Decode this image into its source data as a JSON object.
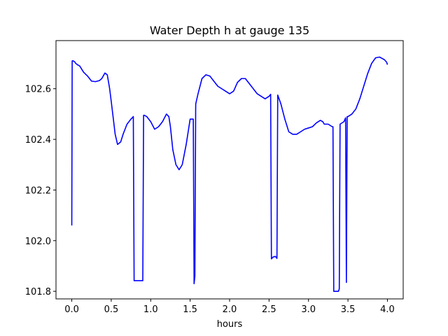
{
  "chart_data": {
    "type": "line",
    "title": "Water Depth h at gauge 135",
    "xlabel": "hours",
    "ylabel": "",
    "xlim": [
      -0.2,
      4.2
    ],
    "ylim": [
      101.77,
      102.79
    ],
    "x_ticks": [
      0.0,
      0.5,
      1.0,
      1.5,
      2.0,
      2.5,
      3.0,
      3.5,
      4.0
    ],
    "x_tick_labels": [
      "0.0",
      "0.5",
      "1.0",
      "1.5",
      "2.0",
      "2.5",
      "3.0",
      "3.5",
      "4.0"
    ],
    "y_ticks": [
      101.8,
      102.0,
      102.2,
      102.4,
      102.6
    ],
    "y_tick_labels": [
      "101.8",
      "102.0",
      "102.2",
      "102.4",
      "102.6"
    ],
    "grid": false,
    "series": [
      {
        "color": "#0000ff",
        "x": [
          0.0,
          0.005,
          0.02,
          0.04,
          0.05,
          0.07,
          0.1,
          0.15,
          0.2,
          0.25,
          0.3,
          0.35,
          0.38,
          0.42,
          0.45,
          0.48,
          0.5,
          0.55,
          0.58,
          0.62,
          0.65,
          0.7,
          0.75,
          0.78,
          0.79,
          0.8,
          0.9,
          0.91,
          0.92,
          0.95,
          1.0,
          1.05,
          1.1,
          1.15,
          1.2,
          1.23,
          1.25,
          1.28,
          1.32,
          1.36,
          1.4,
          1.45,
          1.5,
          1.52,
          1.54,
          1.55,
          1.56,
          1.57,
          1.571,
          1.6,
          1.65,
          1.7,
          1.75,
          1.8,
          1.85,
          1.9,
          1.95,
          2.0,
          2.05,
          2.1,
          2.15,
          2.2,
          2.25,
          2.3,
          2.35,
          2.4,
          2.45,
          2.5,
          2.52,
          2.53,
          2.55,
          2.58,
          2.6,
          2.61,
          2.65,
          2.7,
          2.75,
          2.8,
          2.85,
          2.9,
          2.95,
          3.0,
          3.05,
          3.1,
          3.15,
          3.18,
          3.2,
          3.25,
          3.3,
          3.31,
          3.32,
          3.38,
          3.39,
          3.4,
          3.45,
          3.47,
          3.48,
          3.49,
          3.5,
          3.55,
          3.6,
          3.65,
          3.7,
          3.75,
          3.8,
          3.85,
          3.9,
          3.93,
          3.96,
          3.99,
          4.0
        ],
        "values": [
          102.06,
          102.71,
          102.71,
          102.705,
          102.7,
          102.695,
          102.69,
          102.665,
          102.65,
          102.63,
          102.628,
          102.632,
          102.64,
          102.662,
          102.655,
          102.6,
          102.55,
          102.42,
          102.38,
          102.39,
          102.42,
          102.46,
          102.48,
          102.49,
          101.842,
          101.842,
          101.842,
          102.495,
          102.495,
          102.49,
          102.47,
          102.44,
          102.45,
          102.47,
          102.5,
          102.49,
          102.45,
          102.36,
          102.3,
          102.28,
          102.3,
          102.38,
          102.48,
          102.48,
          102.48,
          101.83,
          101.86,
          102.52,
          102.54,
          102.58,
          102.64,
          102.655,
          102.65,
          102.63,
          102.61,
          102.6,
          102.59,
          102.58,
          102.59,
          102.625,
          102.64,
          102.64,
          102.62,
          102.6,
          102.58,
          102.57,
          102.56,
          102.57,
          102.578,
          101.928,
          101.935,
          101.938,
          101.93,
          102.575,
          102.54,
          102.48,
          102.43,
          102.42,
          102.42,
          102.43,
          102.44,
          102.445,
          102.45,
          102.465,
          102.475,
          102.47,
          102.46,
          102.46,
          102.45,
          102.45,
          101.8,
          101.8,
          101.81,
          102.46,
          102.47,
          102.485,
          101.835,
          102.49,
          102.49,
          102.5,
          102.52,
          102.56,
          102.61,
          102.66,
          102.7,
          102.722,
          102.725,
          102.72,
          102.715,
          102.705,
          102.695
        ]
      }
    ]
  }
}
